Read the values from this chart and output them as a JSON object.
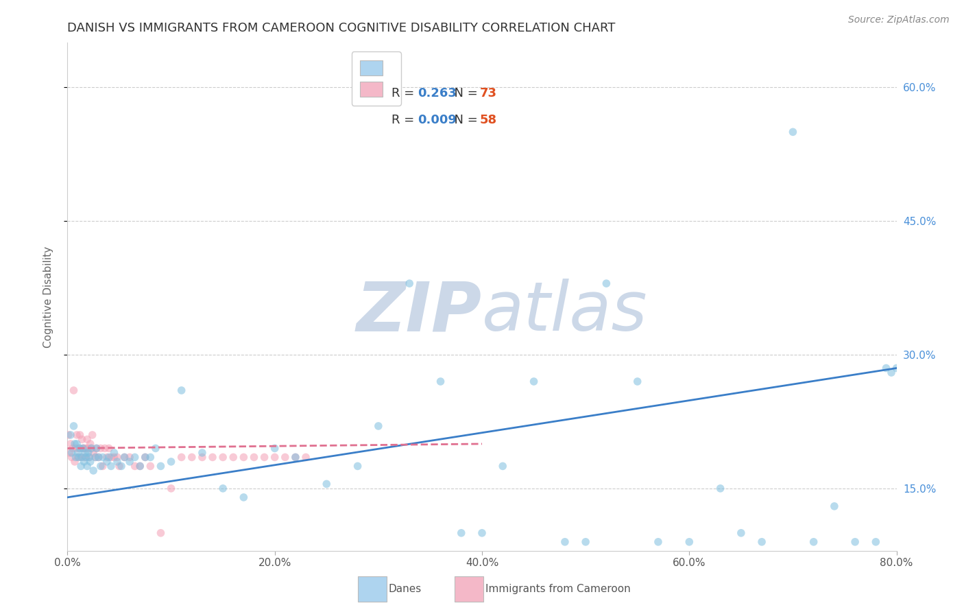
{
  "title": "DANISH VS IMMIGRANTS FROM CAMEROON COGNITIVE DISABILITY CORRELATION CHART",
  "source": "Source: ZipAtlas.com",
  "ylabel": "Cognitive Disability",
  "xlim": [
    0.0,
    0.8
  ],
  "ylim": [
    0.08,
    0.65
  ],
  "xticks": [
    0.0,
    0.2,
    0.4,
    0.6,
    0.8
  ],
  "yticks": [
    0.15,
    0.3,
    0.45,
    0.6
  ],
  "ytick_labels": [
    "15.0%",
    "30.0%",
    "45.0%",
    "60.0%"
  ],
  "xtick_labels": [
    "0.0%",
    "20.0%",
    "40.0%",
    "60.0%",
    "80.0%"
  ],
  "danes_R": 0.263,
  "danes_N": 73,
  "immigrants_R": 0.009,
  "immigrants_N": 58,
  "danes_color": "#7fbfdf",
  "immigrants_color": "#f4a0b5",
  "danes_line_color": "#3a7ec8",
  "immigrants_line_color": "#e07090",
  "legend_danes_patch_color": "#aed4ef",
  "legend_immigrants_patch_color": "#f4b8c8",
  "background_color": "#ffffff",
  "grid_color": "#cccccc",
  "watermark_color": "#ccd8e8",
  "title_fontsize": 13,
  "axis_label_fontsize": 11,
  "tick_fontsize": 11,
  "legend_fontsize": 13,
  "source_fontsize": 10,
  "marker_size": 70,
  "marker_alpha": 0.55,
  "line_width": 2.0,
  "danes_x": [
    0.003,
    0.004,
    0.006,
    0.007,
    0.008,
    0.009,
    0.01,
    0.011,
    0.012,
    0.013,
    0.014,
    0.015,
    0.016,
    0.017,
    0.018,
    0.019,
    0.02,
    0.021,
    0.022,
    0.023,
    0.025,
    0.027,
    0.028,
    0.03,
    0.032,
    0.034,
    0.038,
    0.04,
    0.042,
    0.045,
    0.048,
    0.052,
    0.055,
    0.06,
    0.065,
    0.07,
    0.075,
    0.08,
    0.085,
    0.09,
    0.1,
    0.11,
    0.13,
    0.15,
    0.17,
    0.2,
    0.22,
    0.25,
    0.28,
    0.3,
    0.33,
    0.36,
    0.38,
    0.4,
    0.42,
    0.45,
    0.48,
    0.5,
    0.52,
    0.55,
    0.57,
    0.6,
    0.63,
    0.65,
    0.67,
    0.7,
    0.72,
    0.74,
    0.76,
    0.78,
    0.79,
    0.795,
    0.8
  ],
  "danes_y": [
    0.21,
    0.19,
    0.22,
    0.2,
    0.185,
    0.2,
    0.19,
    0.185,
    0.195,
    0.175,
    0.185,
    0.195,
    0.18,
    0.19,
    0.185,
    0.175,
    0.19,
    0.185,
    0.18,
    0.195,
    0.17,
    0.185,
    0.195,
    0.185,
    0.175,
    0.185,
    0.18,
    0.185,
    0.175,
    0.19,
    0.18,
    0.175,
    0.185,
    0.18,
    0.185,
    0.175,
    0.185,
    0.185,
    0.195,
    0.175,
    0.18,
    0.26,
    0.19,
    0.15,
    0.14,
    0.195,
    0.185,
    0.155,
    0.175,
    0.22,
    0.38,
    0.27,
    0.1,
    0.1,
    0.175,
    0.27,
    0.09,
    0.09,
    0.38,
    0.27,
    0.09,
    0.09,
    0.15,
    0.1,
    0.09,
    0.55,
    0.09,
    0.13,
    0.09,
    0.09,
    0.285,
    0.28,
    0.285
  ],
  "immigrants_x": [
    0.001,
    0.002,
    0.003,
    0.004,
    0.005,
    0.006,
    0.007,
    0.008,
    0.009,
    0.01,
    0.011,
    0.012,
    0.013,
    0.014,
    0.015,
    0.016,
    0.017,
    0.018,
    0.019,
    0.02,
    0.021,
    0.022,
    0.023,
    0.024,
    0.025,
    0.027,
    0.028,
    0.03,
    0.032,
    0.034,
    0.036,
    0.038,
    0.04,
    0.042,
    0.045,
    0.048,
    0.05,
    0.055,
    0.06,
    0.065,
    0.07,
    0.075,
    0.08,
    0.09,
    0.1,
    0.11,
    0.12,
    0.13,
    0.14,
    0.15,
    0.16,
    0.17,
    0.18,
    0.19,
    0.2,
    0.21,
    0.22,
    0.23
  ],
  "immigrants_y": [
    0.21,
    0.19,
    0.2,
    0.185,
    0.195,
    0.26,
    0.18,
    0.195,
    0.21,
    0.185,
    0.195,
    0.21,
    0.185,
    0.205,
    0.195,
    0.195,
    0.185,
    0.195,
    0.205,
    0.195,
    0.185,
    0.2,
    0.195,
    0.21,
    0.19,
    0.185,
    0.195,
    0.185,
    0.195,
    0.175,
    0.195,
    0.185,
    0.195,
    0.185,
    0.185,
    0.185,
    0.175,
    0.185,
    0.185,
    0.175,
    0.175,
    0.185,
    0.175,
    0.1,
    0.15,
    0.185,
    0.185,
    0.185,
    0.185,
    0.185,
    0.185,
    0.185,
    0.185,
    0.185,
    0.185,
    0.185,
    0.185,
    0.185
  ]
}
